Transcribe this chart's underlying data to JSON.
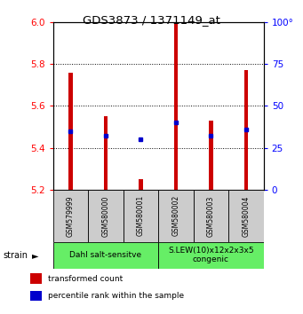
{
  "title": "GDS3873 / 1371149_at",
  "samples": [
    "GSM579999",
    "GSM580000",
    "GSM580001",
    "GSM580002",
    "GSM580003",
    "GSM580004"
  ],
  "bar_bottoms": [
    5.2,
    5.2,
    5.2,
    5.2,
    5.2,
    5.2
  ],
  "bar_tops": [
    5.76,
    5.55,
    5.25,
    5.99,
    5.53,
    5.77
  ],
  "blue_marker_y": [
    5.48,
    5.46,
    5.44,
    5.52,
    5.46,
    5.49
  ],
  "ylim": [
    5.2,
    6.0
  ],
  "yticks_left": [
    5.2,
    5.4,
    5.6,
    5.8,
    6.0
  ],
  "yticks_right": [
    0,
    25,
    50,
    75,
    100
  ],
  "right_ylim": [
    0,
    100
  ],
  "bar_color": "#cc0000",
  "blue_color": "#0000cc",
  "group1_label": "Dahl salt-sensitve",
  "group2_label": "S.LEW(10)x12x2x3x5\ncongenic",
  "group_bg_color": "#66ee66",
  "sample_bg_color": "#cccccc",
  "legend_red_label": "transformed count",
  "legend_blue_label": "percentile rank within the sample",
  "strain_label": "strain",
  "bar_width": 0.12
}
